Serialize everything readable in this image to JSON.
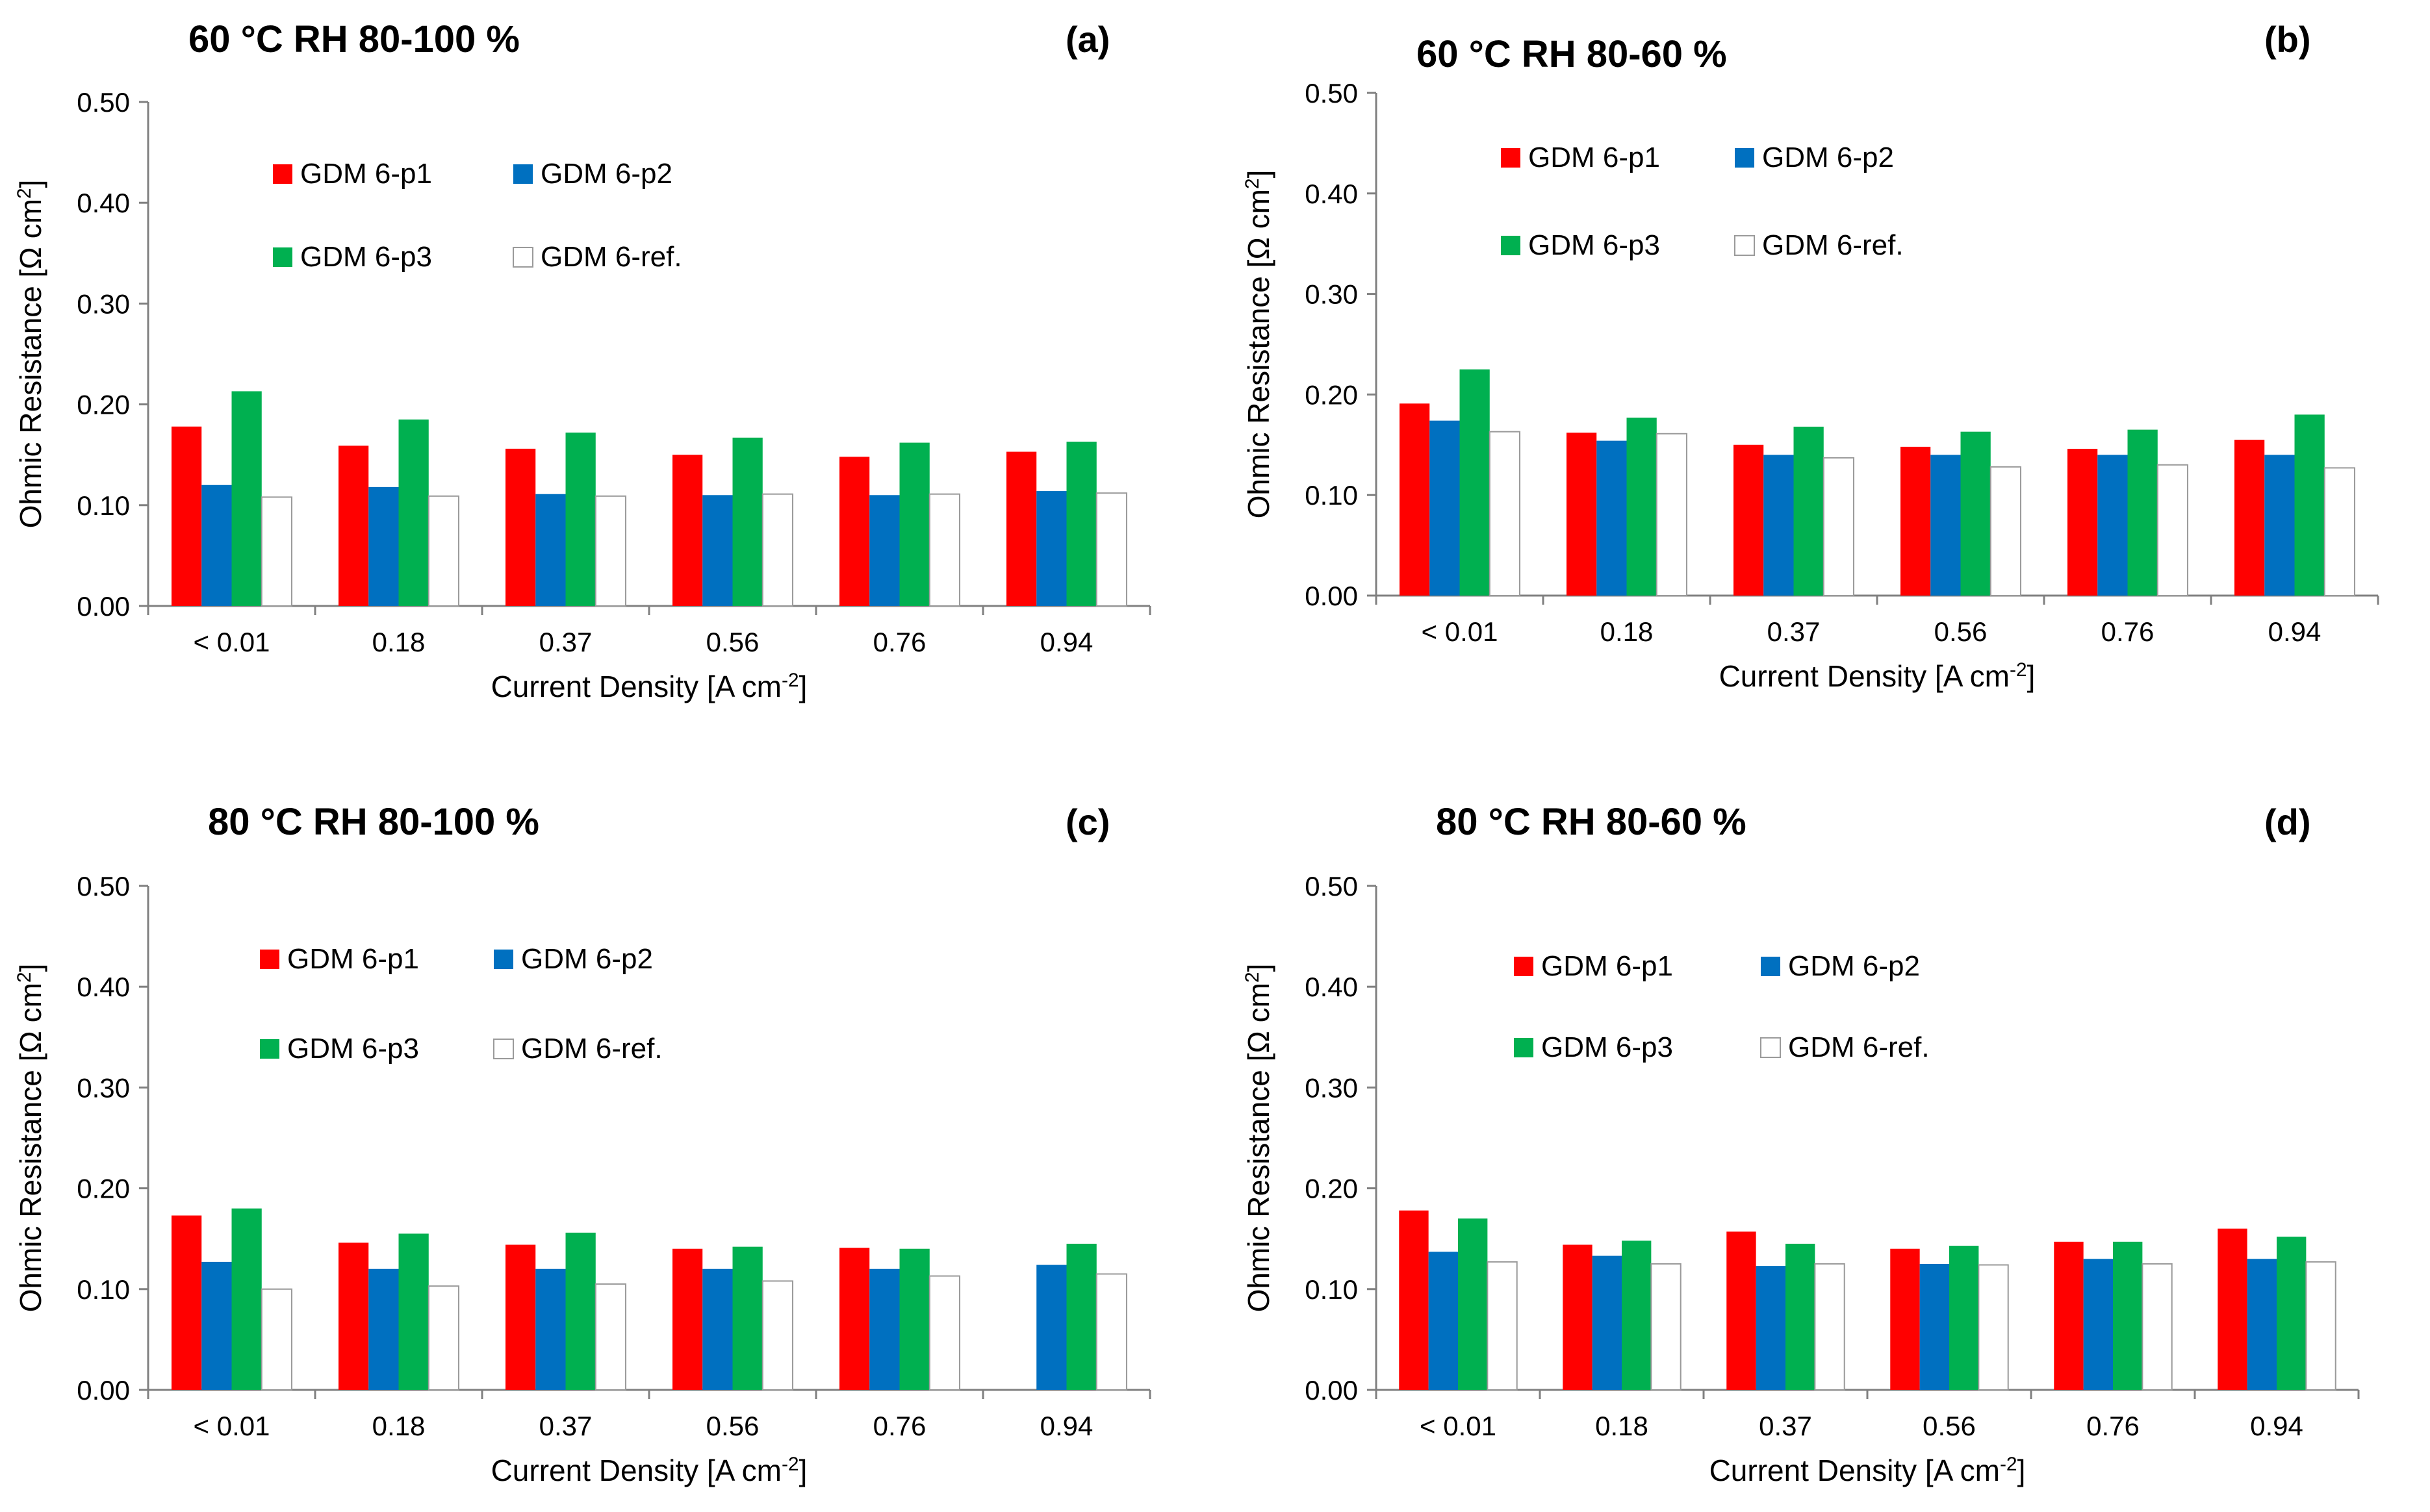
{
  "chart_data": [
    {
      "panel_label": "(a)",
      "title": "60 °C   RH 80-100 %",
      "type": "bar",
      "xlabel": "Current Density [A cm",
      "xlabel_sup": "-2",
      "xlabel_end": "]",
      "ylabel": "Ohmic Resistance [Ω cm",
      "ylabel_sup": "2",
      "ylabel_end": "]",
      "ylim": [
        0,
        0.5
      ],
      "yticks": [
        "0.00",
        "0.10",
        "0.20",
        "0.30",
        "0.40",
        "0.50"
      ],
      "categories": [
        "< 0.01",
        "0.18",
        "0.37",
        "0.56",
        "0.76",
        "0.94"
      ],
      "legend": [
        "GDM 6-p1",
        "GDM 6-p2",
        "GDM 6-p3",
        "GDM 6-ref."
      ],
      "series": [
        {
          "name": "GDM 6-p1",
          "color": "#ff0000",
          "values": [
            0.178,
            0.159,
            0.156,
            0.15,
            0.148,
            0.153
          ]
        },
        {
          "name": "GDM 6-p2",
          "color": "#0070c0",
          "values": [
            0.12,
            0.118,
            0.111,
            0.11,
            0.11,
            0.114
          ]
        },
        {
          "name": "GDM 6-p3",
          "color": "#00b050",
          "values": [
            0.213,
            0.185,
            0.172,
            0.167,
            0.162,
            0.163
          ]
        },
        {
          "name": "GDM 6-ref.",
          "color": "#ffffff",
          "values": [
            0.108,
            0.109,
            0.109,
            0.111,
            0.111,
            0.112
          ]
        }
      ]
    },
    {
      "panel_label": "(b)",
      "title": "60 °C   RH 80-60 %",
      "type": "bar",
      "xlabel": "Current Density [A cm",
      "xlabel_sup": "-2",
      "xlabel_end": "]",
      "ylabel": "Ohmic Resistance [Ω cm",
      "ylabel_sup": "2",
      "ylabel_end": "]",
      "ylim": [
        0,
        0.5
      ],
      "yticks": [
        "0.00",
        "0.10",
        "0.20",
        "0.30",
        "0.40",
        "0.50"
      ],
      "categories": [
        "< 0.01",
        "0.18",
        "0.37",
        "0.56",
        "0.76",
        "0.94"
      ],
      "legend": [
        "GDM 6-p1",
        "GDM 6-p2",
        "GDM 6-p3",
        "GDM 6-ref."
      ],
      "series": [
        {
          "name": "GDM 6-p1",
          "color": "#ff0000",
          "values": [
            0.191,
            0.162,
            0.15,
            0.148,
            0.146,
            0.155
          ]
        },
        {
          "name": "GDM 6-p2",
          "color": "#0070c0",
          "values": [
            0.174,
            0.154,
            0.14,
            0.14,
            0.14,
            0.14
          ]
        },
        {
          "name": "GDM 6-p3",
          "color": "#00b050",
          "values": [
            0.225,
            0.177,
            0.168,
            0.163,
            0.165,
            0.18
          ]
        },
        {
          "name": "GDM 6-ref.",
          "color": "#ffffff",
          "values": [
            0.163,
            0.161,
            0.137,
            0.128,
            0.13,
            0.127
          ]
        }
      ]
    },
    {
      "panel_label": "(c)",
      "title": "80 °C   RH 80-100 %",
      "type": "bar",
      "xlabel": "Current Density [A cm",
      "xlabel_sup": "-2",
      "xlabel_end": "]",
      "ylabel": "Ohmic Resistance [Ω cm",
      "ylabel_sup": "2",
      "ylabel_end": "]",
      "ylim": [
        0,
        0.5
      ],
      "yticks": [
        "0.00",
        "0.10",
        "0.20",
        "0.30",
        "0.40",
        "0.50"
      ],
      "categories": [
        "< 0.01",
        "0.18",
        "0.37",
        "0.56",
        "0.76",
        "0.94"
      ],
      "legend": [
        "GDM 6-p1",
        "GDM 6-p2",
        "GDM 6-p3",
        "GDM 6-ref."
      ],
      "series": [
        {
          "name": "GDM 6-p1",
          "color": "#ff0000",
          "values": [
            0.173,
            0.146,
            0.144,
            0.14,
            0.141,
            null
          ]
        },
        {
          "name": "GDM 6-p2",
          "color": "#0070c0",
          "values": [
            0.127,
            0.12,
            0.12,
            0.12,
            0.12,
            0.124
          ]
        },
        {
          "name": "GDM 6-p3",
          "color": "#00b050",
          "values": [
            0.18,
            0.155,
            0.156,
            0.142,
            0.14,
            0.145
          ]
        },
        {
          "name": "GDM 6-ref.",
          "color": "#ffffff",
          "values": [
            0.1,
            0.103,
            0.105,
            0.108,
            0.113,
            0.115
          ]
        }
      ]
    },
    {
      "panel_label": "(d)",
      "title": "80 °C   RH 80-60 %",
      "type": "bar",
      "xlabel": "Current Density [A cm",
      "xlabel_sup": "-2",
      "xlabel_end": "]",
      "ylabel": "Ohmic Resistance [Ω cm",
      "ylabel_sup": "2",
      "ylabel_end": "]",
      "ylim": [
        0,
        0.5
      ],
      "yticks": [
        "0.00",
        "0.10",
        "0.20",
        "0.30",
        "0.40",
        "0.50"
      ],
      "categories": [
        "< 0.01",
        "0.18",
        "0.37",
        "0.56",
        "0.76",
        "0.94"
      ],
      "legend": [
        "GDM 6-p1",
        "GDM 6-p2",
        "GDM 6-p3",
        "GDM 6-ref."
      ],
      "series": [
        {
          "name": "GDM 6-p1",
          "color": "#ff0000",
          "values": [
            0.178,
            0.144,
            0.157,
            0.14,
            0.147,
            0.16
          ]
        },
        {
          "name": "GDM 6-p2",
          "color": "#0070c0",
          "values": [
            0.137,
            0.133,
            0.123,
            0.125,
            0.13,
            0.13
          ]
        },
        {
          "name": "GDM 6-p3",
          "color": "#00b050",
          "values": [
            0.17,
            0.148,
            0.145,
            0.143,
            0.147,
            0.152
          ]
        },
        {
          "name": "GDM 6-ref.",
          "color": "#ffffff",
          "values": [
            0.127,
            0.125,
            0.125,
            0.124,
            0.125,
            0.127
          ]
        }
      ]
    }
  ]
}
